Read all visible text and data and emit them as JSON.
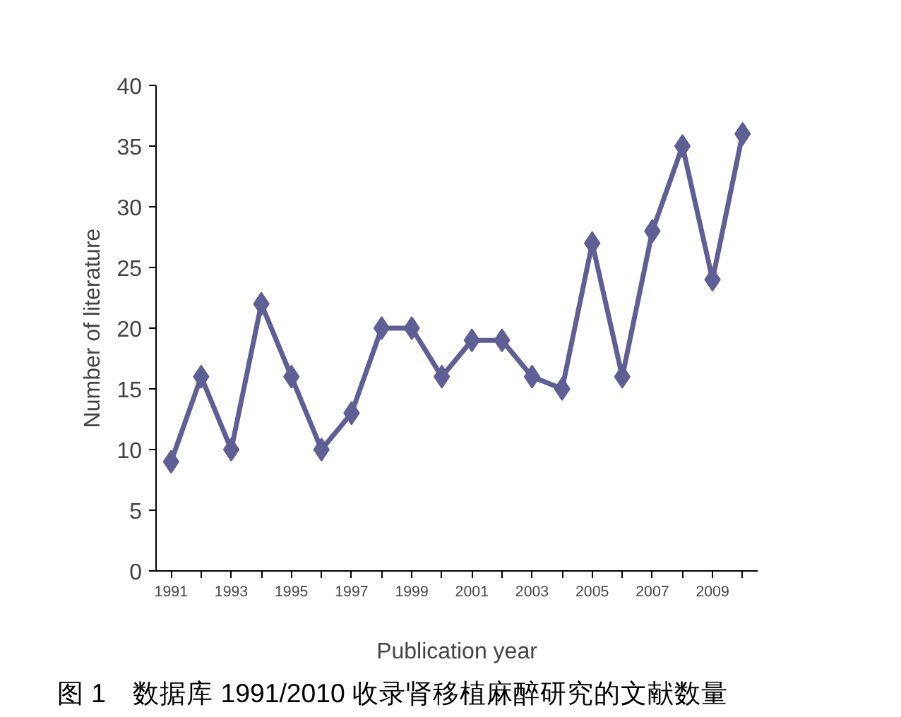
{
  "chart_data": {
    "type": "line",
    "xlabel": "Publication year",
    "ylabel": "Number of literature",
    "categories": [
      "1991",
      null,
      "1993",
      null,
      "1995",
      null,
      "1997",
      null,
      "1999",
      null,
      "2001",
      null,
      "2003",
      null,
      "2005",
      null,
      "2007",
      null,
      "2009",
      null
    ],
    "series": [
      {
        "color": "#5f5f96",
        "values": [
          9,
          16,
          10,
          22,
          16,
          10,
          13,
          20,
          20,
          16,
          19,
          19,
          16,
          15,
          27,
          16,
          28,
          35,
          24,
          36
        ]
      }
    ],
    "ylim": [
      0,
      40
    ],
    "yticks": [
      0,
      5,
      10,
      15,
      20,
      25,
      30,
      35,
      40
    ],
    "grid": false,
    "marker": "diamond",
    "line_style": "solid",
    "annotations": [
      "图 1　数据库 1991/2010 收录肾移植麻醉研究的文献数量"
    ]
  }
}
